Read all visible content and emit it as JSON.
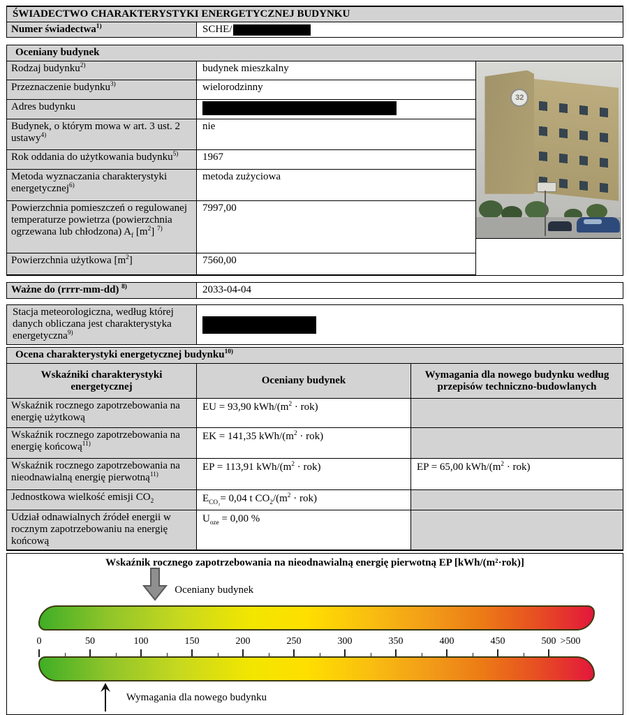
{
  "doc": {
    "title": "ŚWIADECTWO CHARAKTERYSTYKI ENERGETYCZNEJ BUDYNKU",
    "number_label": [
      {
        "t": "Numer świadectwa"
      },
      {
        "sup": "1)"
      }
    ],
    "number_value_prefix": "SCHE/",
    "number_value_redacted": true
  },
  "building_section": {
    "header": "Oceniany budynek",
    "rows": [
      {
        "label": [
          {
            "t": "Rodzaj budynku"
          },
          {
            "sup": "2)"
          }
        ],
        "value": "budynek mieszkalny"
      },
      {
        "label": [
          {
            "t": "Przeznaczenie budynku"
          },
          {
            "sup": "3)"
          }
        ],
        "value": "wielorodzinny"
      },
      {
        "label": [
          {
            "t": "Adres budynku"
          }
        ],
        "value": "",
        "redacted": true
      },
      {
        "label": [
          {
            "t": "Budynek, o którym mowa w art. 3 ust. 2 ustawy"
          },
          {
            "sup": "4)"
          }
        ],
        "value": "nie"
      },
      {
        "label": [
          {
            "t": "Rok oddania do użytkowania budynku"
          },
          {
            "sup": "5)"
          }
        ],
        "value": "1967"
      },
      {
        "label": [
          {
            "t": "Metoda wyznaczania charakterystyki energetycznej"
          },
          {
            "sup": "6)"
          }
        ],
        "value": "metoda zużyciowa"
      },
      {
        "label": [
          {
            "t": "Powierzchnia pomieszczeń o regulowanej temperaturze powietrza (powierzchnia ogrzewana lub chłodzona) A"
          },
          {
            "sub": "f"
          },
          {
            "t": " [m"
          },
          {
            "sup": "2"
          },
          {
            "t": "] "
          },
          {
            "sup": "7)"
          }
        ],
        "value": "7997,00"
      },
      {
        "label": [
          {
            "t": "Powierzchnia użytkowa [m"
          },
          {
            "sup": "2"
          },
          {
            "t": "]"
          }
        ],
        "value": "7560,00"
      }
    ],
    "photo": {
      "building_number": "32"
    }
  },
  "valid_until": {
    "label": [
      {
        "t": "Ważne do (rrrr-mm-dd) "
      },
      {
        "sup": "8)"
      }
    ],
    "value": "2033-04-04"
  },
  "weather_station": {
    "label": [
      {
        "t": "Stacja meteorologiczna, według której danych obliczana jest charakterystyka energetyczna"
      },
      {
        "sup": "9)"
      }
    ],
    "redacted": true
  },
  "assessment": {
    "header": [
      {
        "t": "Ocena charakterystyki energetycznej budynku"
      },
      {
        "sup": "10)"
      }
    ],
    "columns": [
      "Wskaźniki charakterystyki energetycznej",
      "Oceniany budynek",
      "Wymagania dla nowego budynku według przepisów techniczno-budowlanych"
    ],
    "rows": [
      {
        "label": [
          {
            "t": "Wskaźnik rocznego zapotrzebowania na energię użytkową"
          }
        ],
        "value": [
          {
            "t": "EU = 93,90 kWh/(m"
          },
          {
            "sup": "2"
          },
          {
            "t": " · rok)"
          }
        ],
        "requirement": null
      },
      {
        "label": [
          {
            "t": "Wskaźnik rocznego zapotrzebowania na energię końcową"
          },
          {
            "sup": "11)"
          }
        ],
        "value": [
          {
            "t": "EK = 141,35 kWh/(m"
          },
          {
            "sup": "2"
          },
          {
            "t": " · rok)"
          }
        ],
        "requirement": null
      },
      {
        "label": [
          {
            "t": "Wskaźnik rocznego zapotrzebowania na nieodnawialną energię pierwotną"
          },
          {
            "sup": "11)"
          }
        ],
        "value": [
          {
            "t": "EP = 113,91 kWh/(m"
          },
          {
            "sup": "2"
          },
          {
            "t": " · rok)"
          }
        ],
        "requirement": [
          {
            "t": "EP = 65,00 kWh/(m"
          },
          {
            "sup": "2"
          },
          {
            "t": " · rok)"
          }
        ]
      },
      {
        "label": [
          {
            "t": "Jednostkowa wielkość emisji CO"
          },
          {
            "sub": "2"
          }
        ],
        "value": [
          {
            "t": "E"
          },
          {
            "sub": "CO₂"
          },
          {
            "t": "= 0,04 t CO"
          },
          {
            "sub": "2"
          },
          {
            "t": "/(m"
          },
          {
            "sup": "2"
          },
          {
            "t": " · rok)"
          }
        ],
        "requirement": null
      },
      {
        "label": [
          {
            "t": "Udział odnawialnych źródeł energii w rocznym zapotrzebowaniu na energię końcową"
          }
        ],
        "value": [
          {
            "t": "U"
          },
          {
            "sub": "oze"
          },
          {
            "t": " = 0,00 %"
          }
        ],
        "requirement": null
      }
    ]
  },
  "chart_data": {
    "type": "scale",
    "title": "Wskaźnik rocznego zapotrzebowania na nieodnawialną energię pierwotną EP [kWh/(m²·rok)]",
    "scale_min": 0,
    "scale_max": 500,
    "major_tick_step": 50,
    "minor_tick_step": 25,
    "tick_labels": [
      "0",
      "50",
      "100",
      "150",
      "200",
      "250",
      "300",
      "350",
      "400",
      "450",
      "500",
      ">500"
    ],
    "markers": [
      {
        "name": "Oceniany budynek",
        "value": 113.91,
        "arrow": "down",
        "color": "#8f8f8f"
      },
      {
        "name": "Wymagania dla nowego budynku",
        "value": 65.0,
        "arrow": "up",
        "color": "#111111"
      }
    ],
    "gradient_stops": [
      {
        "color": "#3fae26",
        "pos": 0
      },
      {
        "color": "#8ec42a",
        "pos": 12
      },
      {
        "color": "#c6d81f",
        "pos": 25
      },
      {
        "color": "#f2e600",
        "pos": 38
      },
      {
        "color": "#ffdf00",
        "pos": 48
      },
      {
        "color": "#f9bd10",
        "pos": 60
      },
      {
        "color": "#f29d18",
        "pos": 70
      },
      {
        "color": "#ec7a16",
        "pos": 80
      },
      {
        "color": "#e74e22",
        "pos": 90
      },
      {
        "color": "#e3173c",
        "pos": 100
      }
    ]
  },
  "colors": {
    "section_bg": "#d3d3d3",
    "border": "#000000",
    "redaction": "#000000"
  }
}
